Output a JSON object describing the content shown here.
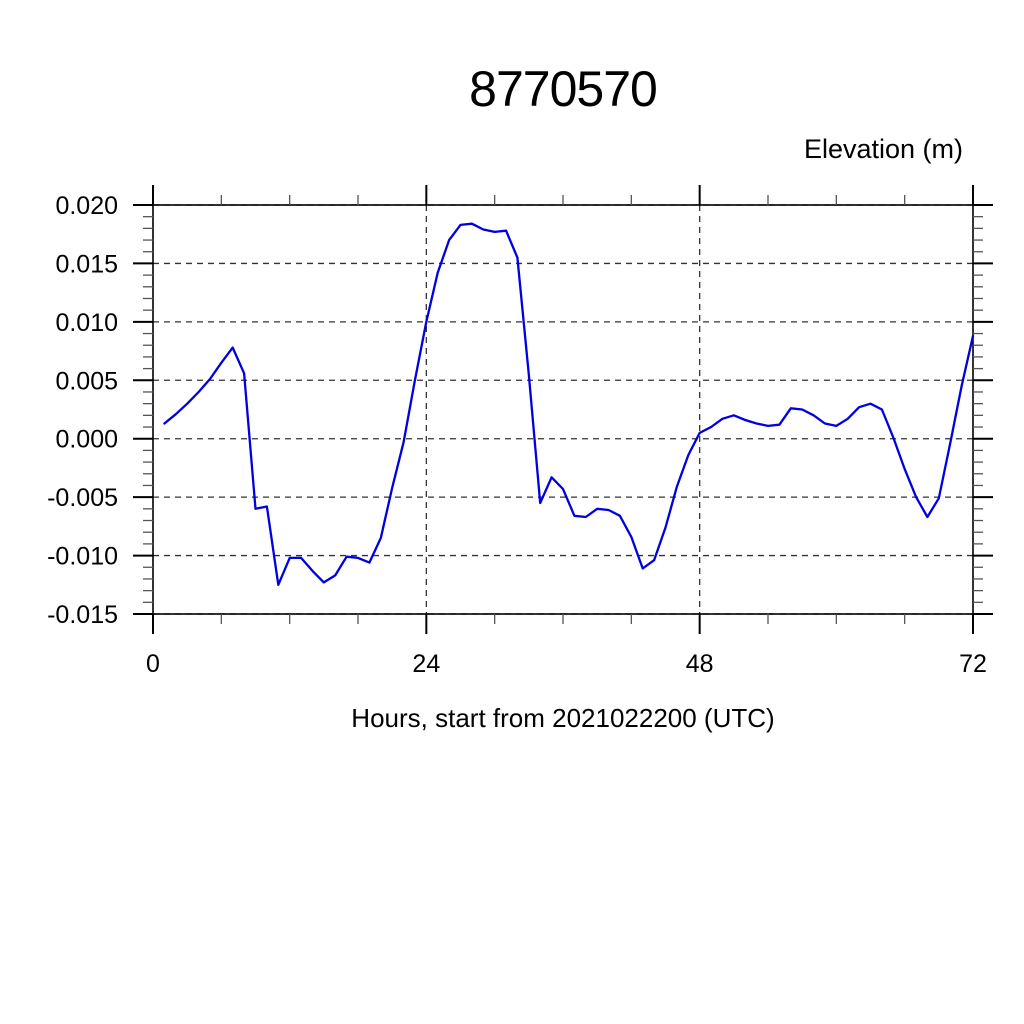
{
  "figure": {
    "background_color": "#ffffff",
    "title": "8770570",
    "right_axis_label": "Elevation (m)",
    "x_axis_label": "Hours, start from 2021022200 (UTC)"
  },
  "chart_data": {
    "type": "line",
    "title": "8770570",
    "xlabel": "Hours, start from 2021022200 (UTC)",
    "ylabel": "Elevation (m)",
    "xlim": [
      0,
      72
    ],
    "ylim": [
      -0.015,
      0.02
    ],
    "x_major_ticks": [
      0,
      24,
      48,
      72
    ],
    "x_minor_step": 6,
    "y_major_step": 0.005,
    "y_minor_step": 0.001,
    "y_tick_decimals": 3,
    "x_gridlines": [
      24,
      48
    ],
    "grid_style": "dashed",
    "legend": "none",
    "line_color": "#0000e0",
    "axis_color": "#000000",
    "grid_color": "#333333",
    "minor_tick_color": "#555555",
    "series": [
      {
        "name": "elevation",
        "x": [
          1,
          2,
          3,
          4,
          5,
          6,
          7,
          8,
          9,
          10,
          11,
          12,
          13,
          14,
          15,
          16,
          17,
          18,
          19,
          20,
          21,
          22,
          23,
          24,
          25,
          26,
          27,
          28,
          29,
          30,
          31,
          32,
          33,
          34,
          35,
          36,
          37,
          38,
          39,
          40,
          41,
          42,
          43,
          44,
          45,
          46,
          47,
          48,
          49,
          50,
          51,
          52,
          53,
          54,
          55,
          56,
          57,
          58,
          59,
          60,
          61,
          62,
          63,
          64,
          65,
          66,
          67,
          68,
          69,
          70,
          71,
          72
        ],
        "values": [
          0.0013,
          0.0021,
          0.003,
          0.004,
          0.0051,
          0.0065,
          0.0078,
          0.0056,
          -0.006,
          -0.0058,
          -0.0125,
          -0.0102,
          -0.0102,
          -0.0113,
          -0.0123,
          -0.0117,
          -0.0101,
          -0.0102,
          -0.0106,
          -0.0085,
          -0.0042,
          -0.0003,
          0.005,
          0.01,
          0.0142,
          0.017,
          0.0183,
          0.0184,
          0.0179,
          0.0177,
          0.0178,
          0.0155,
          0.0055,
          -0.0055,
          -0.0033,
          -0.0043,
          -0.0066,
          -0.0067,
          -0.006,
          -0.0061,
          -0.0066,
          -0.0084,
          -0.0111,
          -0.0104,
          -0.0076,
          -0.0041,
          -0.0014,
          0.0005,
          0.001,
          0.0017,
          0.002,
          0.0016,
          0.0013,
          0.0011,
          0.0012,
          0.0026,
          0.0025,
          0.002,
          0.0013,
          0.0011,
          0.0017,
          0.0027,
          0.003,
          0.0025,
          0.0001,
          -0.0026,
          -0.005,
          -0.0067,
          -0.0051,
          -0.0004,
          0.0045,
          0.0088
        ]
      }
    ]
  }
}
